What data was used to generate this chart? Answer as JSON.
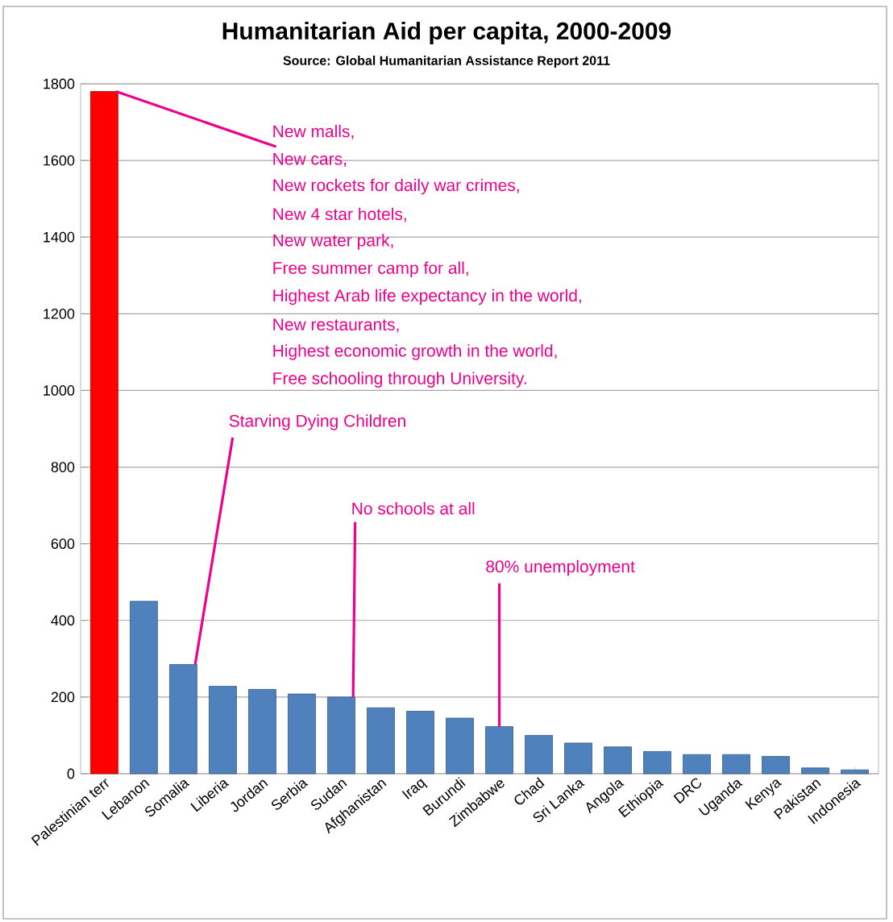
{
  "chart_data": {
    "type": "bar",
    "title": "Humanitarian Aid per capita, 2000-2009",
    "subtitle": "Source: Global Humanitarian Assistance Report 2011",
    "categories": [
      "Palestinian terr",
      "Lebanon",
      "Somalia",
      "Liberia",
      "Jordan",
      "Serbia",
      "Sudan",
      "Afghanistan",
      "Iraq",
      "Burundi",
      "Zimbabwe",
      "Chad",
      "Sri Lanka",
      "Angola",
      "Ethiopia",
      "DRC",
      "Uganda",
      "Kenya",
      "Pakistan",
      "Indonesia"
    ],
    "values": [
      1780,
      450,
      285,
      228,
      220,
      208,
      200,
      172,
      163,
      145,
      123,
      100,
      80,
      70,
      58,
      50,
      50,
      45,
      15,
      10
    ],
    "colors": [
      "#ff0000",
      "#4f81bd",
      "#4f81bd",
      "#4f81bd",
      "#4f81bd",
      "#4f81bd",
      "#4f81bd",
      "#4f81bd",
      "#4f81bd",
      "#4f81bd",
      "#4f81bd",
      "#4f81bd",
      "#4f81bd",
      "#4f81bd",
      "#4f81bd",
      "#4f81bd",
      "#4f81bd",
      "#4f81bd",
      "#4f81bd",
      "#4f81bd"
    ],
    "ylim": [
      0,
      1800
    ],
    "yticks": [
      0,
      200,
      400,
      600,
      800,
      1000,
      1200,
      1400,
      1600,
      1800
    ],
    "grid": "y",
    "annotations": [
      {
        "text": "New malls,",
        "x": "Palestinian terr",
        "y": 1780
      },
      "New cars,",
      "New rockets for daily war crimes,",
      "New 4 star hotels,",
      "New water park,",
      "Free summer camp for all,",
      "Highest Arab life expectancy in the world,",
      "New restaurants,",
      "Highest economic growth in the world,",
      "Free schooling through University.",
      {
        "text": "Starving Dying Children",
        "x": "Somalia",
        "y": 285
      },
      {
        "text": "No schools at all",
        "x": "Sudan",
        "y": 200
      },
      {
        "text": "80% unemployment",
        "x": "Zimbabwe",
        "y": 123
      }
    ]
  }
}
